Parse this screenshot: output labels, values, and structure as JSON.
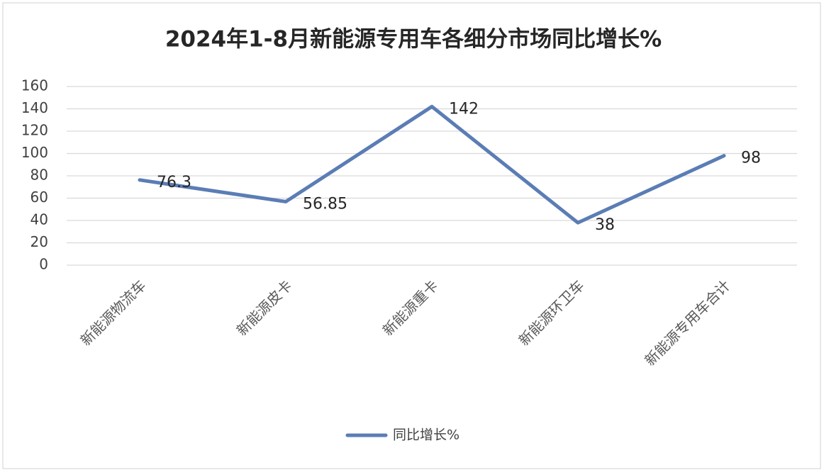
{
  "chart_data": {
    "type": "line",
    "title": "2024年1-8月新能源专用车各细分市场同比增长%",
    "categories": [
      "新能源物流车",
      "新能源皮卡",
      "新能源重卡",
      "新能源环卫车",
      "新能源专用车合计"
    ],
    "series": [
      {
        "name": "同比增长%",
        "color": "#5b7db5",
        "values": [
          76.3,
          56.85,
          142,
          38,
          98
        ]
      }
    ],
    "ylim": [
      0,
      160
    ],
    "yticks": [
      0,
      20,
      40,
      60,
      80,
      100,
      120,
      140,
      160
    ],
    "grid": true,
    "legend": "bottom"
  }
}
